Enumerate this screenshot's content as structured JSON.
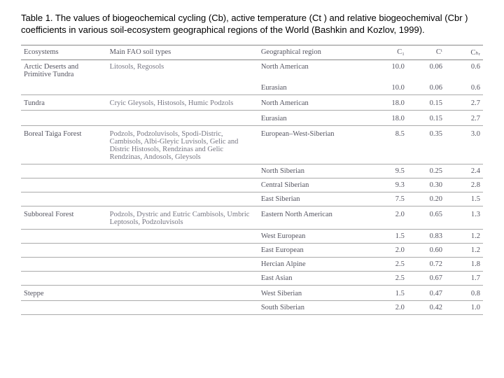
{
  "caption": "Table 1. The values of biogeochemical cycling (Cb), active temperature (Ct ) and relative biogeochemival (Cbr ) coefficients in various soil-ecosystem geographical regions of the World (Bashkin and Kozlov, 1999).",
  "headers": {
    "ecosystems": "Ecosystems",
    "soil": "Main FAO soil types",
    "geo": "Geographical region",
    "cb": "C₁",
    "ct": "Cᵗ",
    "cbr": "Cₕᵣ"
  },
  "rows": [
    {
      "eco": "Arctic Deserts and Primitive Tundra",
      "soil": "Litosols, Regosols",
      "geo": "North American",
      "cb": "10.0",
      "ct": "0.06",
      "cbr": "0.6",
      "rule": false
    },
    {
      "eco": "",
      "soil": "",
      "geo": "Eurasian",
      "cb": "10.0",
      "ct": "0.06",
      "cbr": "0.6",
      "rule": true
    },
    {
      "eco": "Tundra",
      "soil": "Cryic Gleysols, Histosols, Humic Podzols",
      "geo": "North American",
      "cb": "18.0",
      "ct": "0.15",
      "cbr": "2.7",
      "rule": true,
      "gap": true
    },
    {
      "eco": "",
      "soil": "",
      "geo": "Eurasian",
      "cb": "18.0",
      "ct": "0.15",
      "cbr": "2.7",
      "rule": true,
      "gap": true
    },
    {
      "eco": "Boreal Taiga Forest",
      "soil": "Podzols, Podzoluvisols, Spodi-Distric, Cambisols, Albi-Gleyic Luvisols, Gelic and Distric Histosols, Rendzinas and Gelic Rendzinas, Andosols, Gleysols",
      "geo": "European–West-Siberian",
      "cb": "8.5",
      "ct": "0.35",
      "cbr": "3.0",
      "rule": true,
      "gap": true
    },
    {
      "eco": "",
      "soil": "",
      "geo": "North Siberian",
      "cb": "9.5",
      "ct": "0.25",
      "cbr": "2.4",
      "rule": true
    },
    {
      "eco": "",
      "soil": "",
      "geo": "Central Siberian",
      "cb": "9.3",
      "ct": "0.30",
      "cbr": "2.8",
      "rule": true
    },
    {
      "eco": "",
      "soil": "",
      "geo": "East Siberian",
      "cb": "7.5",
      "ct": "0.20",
      "cbr": "1.5",
      "rule": true
    },
    {
      "eco": "Subboreal Forest",
      "soil": "Podzols, Dystric and Eutric Cambisols, Umbric Leptosols, Podzoluvisols",
      "geo": "Eastern North American",
      "cb": "2.0",
      "ct": "0.65",
      "cbr": "1.3",
      "rule": true,
      "gap": true
    },
    {
      "eco": "",
      "soil": "",
      "geo": "West European",
      "cb": "1.5",
      "ct": "0.83",
      "cbr": "1.2",
      "rule": true
    },
    {
      "eco": "",
      "soil": "",
      "geo": "East European",
      "cb": "2.0",
      "ct": "0.60",
      "cbr": "1.2",
      "rule": true
    },
    {
      "eco": "",
      "soil": "",
      "geo": "Hercian Alpine",
      "cb": "2.5",
      "ct": "0.72",
      "cbr": "1.8",
      "rule": true
    },
    {
      "eco": "",
      "soil": "",
      "geo": "East Asian",
      "cb": "2.5",
      "ct": "0.67",
      "cbr": "1.7",
      "rule": true
    },
    {
      "eco": "Steppe",
      "soil": "",
      "geo": "West Siberian",
      "cb": "1.5",
      "ct": "0.47",
      "cbr": "0.8",
      "rule": true,
      "gap": true
    },
    {
      "eco": "",
      "soil": "",
      "geo": "South Siberian",
      "cb": "2.0",
      "ct": "0.42",
      "cbr": "1.0",
      "rule": true
    }
  ]
}
